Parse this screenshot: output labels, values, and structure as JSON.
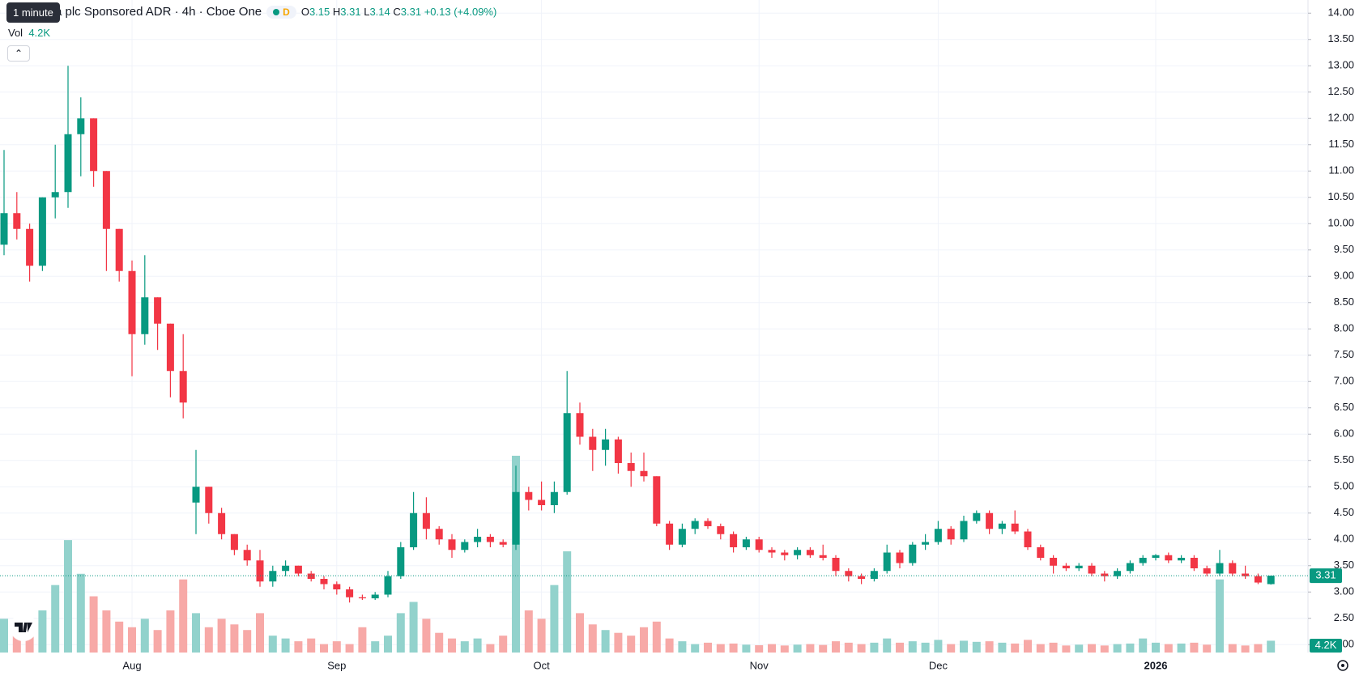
{
  "header": {
    "tooltip": "1 minute",
    "title": "a plc Sponsored ADR · 4h · Cboe One",
    "badge": "D",
    "o_label": "O",
    "h_label": "H",
    "l_label": "L",
    "c_label": "C",
    "change": "+0.13 (+4.09%)",
    "vol_label": "Vol"
  },
  "chart_data": {
    "type": "candlestick",
    "categories": [
      null,
      null,
      null,
      null,
      null,
      null,
      null,
      null,
      null,
      null,
      "Aug",
      null,
      null,
      null,
      null,
      null,
      null,
      null,
      null,
      null,
      null,
      null,
      null,
      null,
      null,
      null,
      "Sep",
      null,
      null,
      null,
      null,
      null,
      null,
      null,
      null,
      null,
      null,
      null,
      null,
      null,
      null,
      null,
      "Oct",
      null,
      null,
      null,
      null,
      null,
      null,
      null,
      null,
      null,
      null,
      null,
      null,
      null,
      null,
      null,
      null,
      "Nov",
      null,
      null,
      null,
      null,
      null,
      null,
      null,
      null,
      null,
      null,
      null,
      null,
      null,
      "Dec",
      null,
      null,
      null,
      null,
      null,
      null,
      null,
      null,
      null,
      null,
      null,
      null,
      null,
      null,
      null,
      null,
      "2026",
      null,
      null,
      null,
      null,
      null,
      null,
      null,
      null,
      null
    ],
    "open": [
      9.6,
      10.2,
      9.9,
      9.2,
      10.5,
      10.6,
      11.7,
      12.0,
      11.0,
      9.9,
      9.1,
      7.9,
      8.6,
      8.1,
      7.2,
      4.7,
      5.0,
      4.5,
      4.1,
      3.8,
      3.6,
      3.2,
      3.4,
      3.5,
      3.35,
      3.25,
      3.15,
      3.05,
      2.9,
      2.88,
      2.95,
      3.3,
      3.85,
      4.5,
      4.2,
      4.0,
      3.8,
      3.95,
      4.05,
      3.95,
      3.9,
      4.9,
      4.75,
      4.65,
      4.9,
      6.4,
      5.95,
      5.7,
      5.9,
      5.45,
      5.3,
      5.2,
      4.3,
      3.9,
      4.2,
      4.35,
      4.25,
      4.1,
      3.85,
      4.0,
      3.8,
      3.75,
      3.7,
      3.8,
      3.7,
      3.65,
      3.4,
      3.3,
      3.25,
      3.4,
      3.75,
      3.55,
      3.9,
      3.95,
      4.2,
      4.0,
      4.35,
      4.5,
      4.2,
      4.3,
      4.15,
      3.85,
      3.65,
      3.5,
      3.45,
      3.5,
      3.35,
      3.3,
      3.4,
      3.55,
      3.65,
      3.7,
      3.6,
      3.65,
      3.45,
      3.35,
      3.55,
      3.35,
      3.3,
      3.15
    ],
    "high": [
      11.4,
      10.6,
      10.0,
      10.5,
      11.5,
      13.0,
      12.4,
      12.0,
      11.0,
      9.9,
      9.3,
      9.4,
      8.6,
      8.1,
      7.9,
      5.7,
      5.0,
      4.6,
      4.1,
      3.9,
      3.8,
      3.5,
      3.6,
      3.5,
      3.4,
      3.3,
      3.2,
      3.1,
      2.95,
      3.0,
      3.4,
      3.95,
      4.9,
      4.8,
      4.25,
      4.1,
      4.0,
      4.2,
      4.1,
      4.0,
      5.4,
      5.0,
      5.1,
      5.1,
      7.2,
      6.6,
      6.1,
      6.1,
      5.95,
      5.65,
      5.65,
      5.2,
      4.35,
      4.3,
      4.4,
      4.4,
      4.3,
      4.15,
      4.05,
      4.05,
      3.85,
      3.8,
      3.85,
      3.85,
      3.9,
      3.7,
      3.45,
      3.35,
      3.45,
      3.9,
      3.8,
      3.95,
      4.1,
      4.35,
      4.25,
      4.45,
      4.55,
      4.55,
      4.35,
      4.55,
      4.2,
      3.9,
      3.7,
      3.55,
      3.55,
      3.55,
      3.4,
      3.45,
      3.6,
      3.7,
      3.72,
      3.75,
      3.7,
      3.7,
      3.5,
      3.8,
      3.6,
      3.5,
      3.35,
      3.31
    ],
    "low": [
      9.4,
      9.7,
      8.9,
      9.1,
      10.1,
      10.3,
      10.9,
      10.7,
      9.1,
      8.9,
      7.1,
      7.7,
      7.6,
      6.7,
      6.3,
      4.1,
      4.3,
      4.0,
      3.7,
      3.5,
      3.1,
      3.1,
      3.3,
      3.3,
      3.2,
      3.05,
      2.95,
      2.8,
      2.85,
      2.85,
      2.9,
      3.25,
      3.8,
      4.0,
      3.9,
      3.65,
      3.75,
      3.85,
      3.85,
      3.85,
      3.8,
      4.55,
      4.55,
      4.5,
      4.85,
      5.8,
      5.3,
      5.4,
      5.25,
      5.0,
      5.1,
      4.25,
      3.8,
      3.85,
      4.1,
      4.2,
      4.0,
      3.75,
      3.8,
      3.75,
      3.65,
      3.6,
      3.62,
      3.65,
      3.6,
      3.3,
      3.2,
      3.15,
      3.2,
      3.35,
      3.45,
      3.5,
      3.8,
      3.9,
      3.9,
      3.95,
      4.3,
      4.1,
      4.1,
      4.1,
      3.8,
      3.6,
      3.35,
      3.4,
      3.4,
      3.3,
      3.2,
      3.25,
      3.35,
      3.5,
      3.6,
      3.55,
      3.55,
      3.4,
      3.3,
      3.3,
      3.3,
      3.25,
      3.15,
      3.14
    ],
    "close": [
      10.2,
      9.9,
      9.2,
      10.5,
      10.6,
      11.7,
      12.0,
      11.0,
      9.9,
      9.1,
      7.9,
      8.6,
      8.1,
      7.2,
      6.6,
      5.0,
      4.5,
      4.1,
      3.8,
      3.6,
      3.2,
      3.4,
      3.5,
      3.35,
      3.25,
      3.15,
      3.05,
      2.9,
      2.88,
      2.95,
      3.3,
      3.85,
      4.5,
      4.2,
      4.0,
      3.8,
      3.95,
      4.05,
      3.95,
      3.9,
      4.9,
      4.75,
      4.65,
      4.9,
      6.4,
      5.95,
      5.7,
      5.9,
      5.45,
      5.3,
      5.2,
      4.3,
      3.9,
      4.2,
      4.35,
      4.25,
      4.1,
      3.85,
      4.0,
      3.8,
      3.75,
      3.7,
      3.8,
      3.7,
      3.65,
      3.4,
      3.3,
      3.25,
      3.4,
      3.75,
      3.55,
      3.9,
      3.95,
      4.2,
      4.0,
      4.35,
      4.5,
      4.2,
      4.3,
      4.15,
      3.85,
      3.65,
      3.5,
      3.45,
      3.5,
      3.35,
      3.3,
      3.4,
      3.55,
      3.65,
      3.7,
      3.6,
      3.65,
      3.45,
      3.35,
      3.55,
      3.35,
      3.3,
      3.18,
      3.31
    ],
    "volume": [
      12000,
      9000,
      8000,
      15000,
      24000,
      40000,
      28000,
      20000,
      15000,
      11000,
      9000,
      12000,
      8000,
      15000,
      26000,
      14000,
      9000,
      12000,
      10000,
      8000,
      14000,
      6000,
      5000,
      4000,
      5000,
      3000,
      4000,
      3000,
      9000,
      4000,
      6000,
      14000,
      18000,
      12000,
      7000,
      5000,
      4000,
      5000,
      3000,
      6000,
      70000,
      15000,
      12000,
      24000,
      36000,
      14000,
      10000,
      8000,
      7000,
      6000,
      9000,
      11000,
      5000,
      4000,
      3000,
      3500,
      3000,
      3200,
      2800,
      2600,
      3000,
      2500,
      2800,
      3000,
      2700,
      4000,
      3500,
      3000,
      3500,
      5000,
      3500,
      4000,
      3500,
      4500,
      3000,
      4200,
      3800,
      4000,
      3500,
      3200,
      4500,
      3000,
      3500,
      2500,
      2800,
      3000,
      2500,
      3000,
      3200,
      5000,
      3500,
      3000,
      3200,
      3500,
      2800,
      26000,
      3000,
      2500,
      3000,
      4200
    ],
    "volume_last_label": "4.2K",
    "ylim": [
      1.85,
      14.25
    ],
    "volume_lim": [
      0,
      72000
    ],
    "yticks": [
      {
        "value": 2,
        "label": "2.00"
      },
      {
        "value": 2.5,
        "label": "2.50"
      },
      {
        "value": 3,
        "label": "3.00"
      },
      {
        "value": 3.5,
        "label": "3.50"
      },
      {
        "value": 4,
        "label": "4.00"
      },
      {
        "value": 4.5,
        "label": "4.50"
      },
      {
        "value": 5,
        "label": "5.00"
      },
      {
        "value": 5.5,
        "label": "5.50"
      },
      {
        "value": 6,
        "label": "6.00"
      },
      {
        "value": 6.5,
        "label": "6.50"
      },
      {
        "value": 7,
        "label": "7.00"
      },
      {
        "value": 7.5,
        "label": "7.50"
      },
      {
        "value": 8,
        "label": "8.00"
      },
      {
        "value": 8.5,
        "label": "8.50"
      },
      {
        "value": 9,
        "label": "9.00"
      },
      {
        "value": 9.5,
        "label": "9.50"
      },
      {
        "value": 10,
        "label": "10.00"
      },
      {
        "value": 10.5,
        "label": "10.50"
      },
      {
        "value": 11,
        "label": "11.00"
      },
      {
        "value": 11.5,
        "label": "11.50"
      },
      {
        "value": 12,
        "label": "12.00"
      },
      {
        "value": 12.5,
        "label": "12.50"
      },
      {
        "value": 13,
        "label": "13.00"
      },
      {
        "value": 13.5,
        "label": "13.50"
      },
      {
        "value": 14,
        "label": "14.00"
      }
    ],
    "grid": true,
    "up_color": "#089981",
    "down_color": "#f23645",
    "up_volume_color": "#92d2cc",
    "down_volume_color": "#f7a9a7"
  }
}
